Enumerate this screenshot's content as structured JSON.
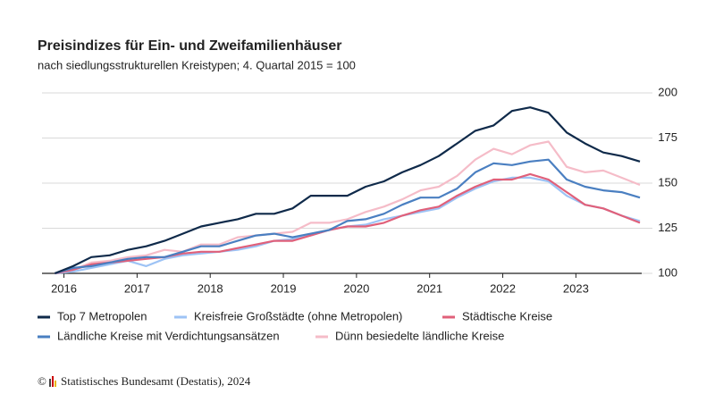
{
  "chart_data": {
    "type": "line",
    "title": "Preisindizes für Ein- und Zweifamilienhäuser",
    "subtitle": "nach siedlungsstrukturellen Kreistypen; 4. Quartal 2015 = 100",
    "source": "Statistisches Bundesamt (Destatis), 2024",
    "x": [
      2015.875,
      2016.125,
      2016.375,
      2016.625,
      2016.875,
      2017.125,
      2017.375,
      2017.625,
      2017.875,
      2018.125,
      2018.375,
      2018.625,
      2018.875,
      2019.125,
      2019.375,
      2019.625,
      2019.875,
      2020.125,
      2020.375,
      2020.625,
      2020.875,
      2021.125,
      2021.375,
      2021.625,
      2021.875,
      2022.125,
      2022.375,
      2022.625,
      2022.875,
      2023.125,
      2023.375,
      2023.625,
      2023.875
    ],
    "xlim": [
      2015.7,
      2023.9
    ],
    "xticks": [
      2016,
      2017,
      2018,
      2019,
      2020,
      2021,
      2022,
      2023
    ],
    "ylim": [
      100,
      200
    ],
    "yticks": [
      100,
      125,
      150,
      175,
      200
    ],
    "grid": true,
    "series": [
      {
        "name": "Top 7 Metropolen",
        "color": "#0f2a4a",
        "values": [
          100,
          104,
          109,
          110,
          113,
          115,
          118,
          122,
          126,
          128,
          130,
          133,
          133,
          136,
          143,
          143,
          143,
          148,
          151,
          156,
          160,
          165,
          172,
          179,
          182,
          190,
          192,
          189,
          178,
          172,
          167,
          165,
          162
        ]
      },
      {
        "name": "Kreisfreie Großstädte (ohne Metropolen)",
        "color": "#9dc3f5",
        "values": [
          100,
          101,
          103,
          105,
          107,
          104,
          108,
          110,
          111,
          112,
          113,
          115,
          118,
          119,
          121,
          124,
          126,
          127,
          130,
          132,
          134,
          136,
          142,
          147,
          151,
          153,
          153,
          151,
          143,
          138,
          136,
          132,
          129
        ]
      },
      {
        "name": "Städtische Kreise",
        "color": "#e0607a",
        "values": [
          100,
          102,
          105,
          106,
          107,
          108,
          109,
          111,
          112,
          112,
          114,
          116,
          118,
          118,
          121,
          124,
          126,
          126,
          128,
          132,
          135,
          137,
          143,
          148,
          152,
          152,
          155,
          152,
          145,
          138,
          136,
          132,
          128
        ]
      },
      {
        "name": "Ländliche Kreise mit Verdichtungsansätzen",
        "color": "#4a7fc1",
        "values": [
          100,
          103,
          104,
          106,
          108,
          109,
          109,
          112,
          115,
          115,
          118,
          121,
          122,
          120,
          122,
          124,
          129,
          130,
          133,
          138,
          142,
          142,
          147,
          156,
          161,
          160,
          162,
          163,
          152,
          148,
          146,
          145,
          142
        ]
      },
      {
        "name": "Dünn besiedelte ländliche Kreise",
        "color": "#f5bcc8",
        "values": [
          100,
          102,
          106,
          107,
          109,
          110,
          113,
          112,
          116,
          116,
          120,
          121,
          122,
          123,
          128,
          128,
          130,
          134,
          137,
          141,
          146,
          148,
          154,
          163,
          169,
          166,
          171,
          173,
          159,
          156,
          157,
          153,
          149
        ]
      }
    ]
  }
}
